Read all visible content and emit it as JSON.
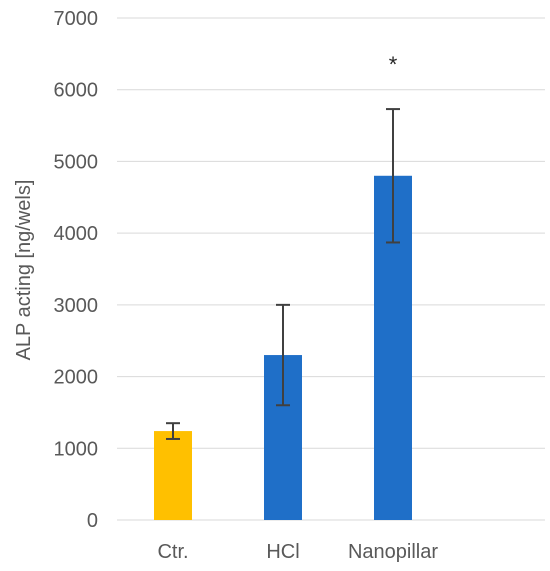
{
  "chart_data": {
    "type": "bar",
    "categories": [
      "Ctr.",
      "HCl",
      "Nanopillar"
    ],
    "values": [
      1240,
      2300,
      4800
    ],
    "error_low": [
      1130,
      1600,
      3870
    ],
    "error_high": [
      1350,
      3000,
      5730
    ],
    "annotations": [
      "",
      "",
      "*"
    ],
    "colors": [
      "#FFC000",
      "#1F6FC8",
      "#1F6FC8"
    ],
    "ylabel": "ALP acting [ng/wels]",
    "ylim": [
      0,
      7000
    ],
    "yticks": [
      "0",
      "1000",
      "2000",
      "3000",
      "4000",
      "5000",
      "6000",
      "7000"
    ],
    "grid": true
  }
}
